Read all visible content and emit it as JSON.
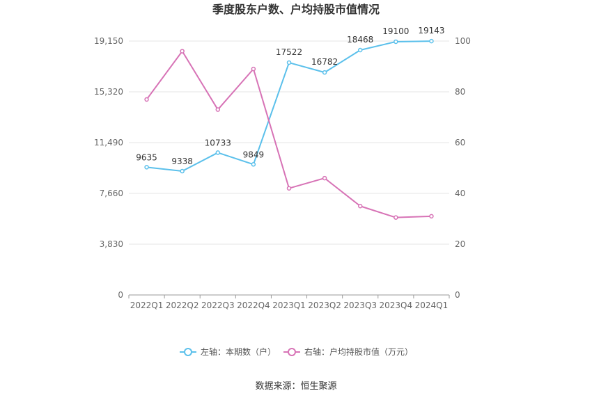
{
  "chart_data": {
    "type": "line",
    "title": "季度股东户数、户均持股市值情况",
    "categories": [
      "2022Q1",
      "2022Q2",
      "2022Q3",
      "2022Q4",
      "2023Q1",
      "2023Q2",
      "2023Q3",
      "2023Q4",
      "2024Q1"
    ],
    "left_axis": {
      "ticks": [
        "0",
        "3,830",
        "7,660",
        "11,490",
        "15,320",
        "19,150"
      ],
      "ylim": [
        0,
        19150
      ]
    },
    "right_axis": {
      "ticks": [
        "0",
        "20",
        "40",
        "60",
        "80",
        "100"
      ],
      "ylim": [
        0,
        100
      ]
    },
    "series": [
      {
        "name": "左轴：本期数（户）",
        "axis": "left",
        "color": "#5bc0eb",
        "values": [
          9635,
          9338,
          10733,
          9849,
          17522,
          16782,
          18468,
          19100,
          19143
        ],
        "labels": [
          "9635",
          "9338",
          "10733",
          "9849",
          "17522",
          "16782",
          "18468",
          "19100",
          "19143"
        ]
      },
      {
        "name": "右轴：户均持股市值（万元）",
        "axis": "right",
        "color": "#d773b6",
        "values": [
          77,
          96,
          73,
          89,
          42,
          46,
          35,
          30.5,
          31
        ]
      }
    ],
    "grid": true,
    "legend_position": "bottom"
  },
  "source": "数据来源：恒生聚源"
}
